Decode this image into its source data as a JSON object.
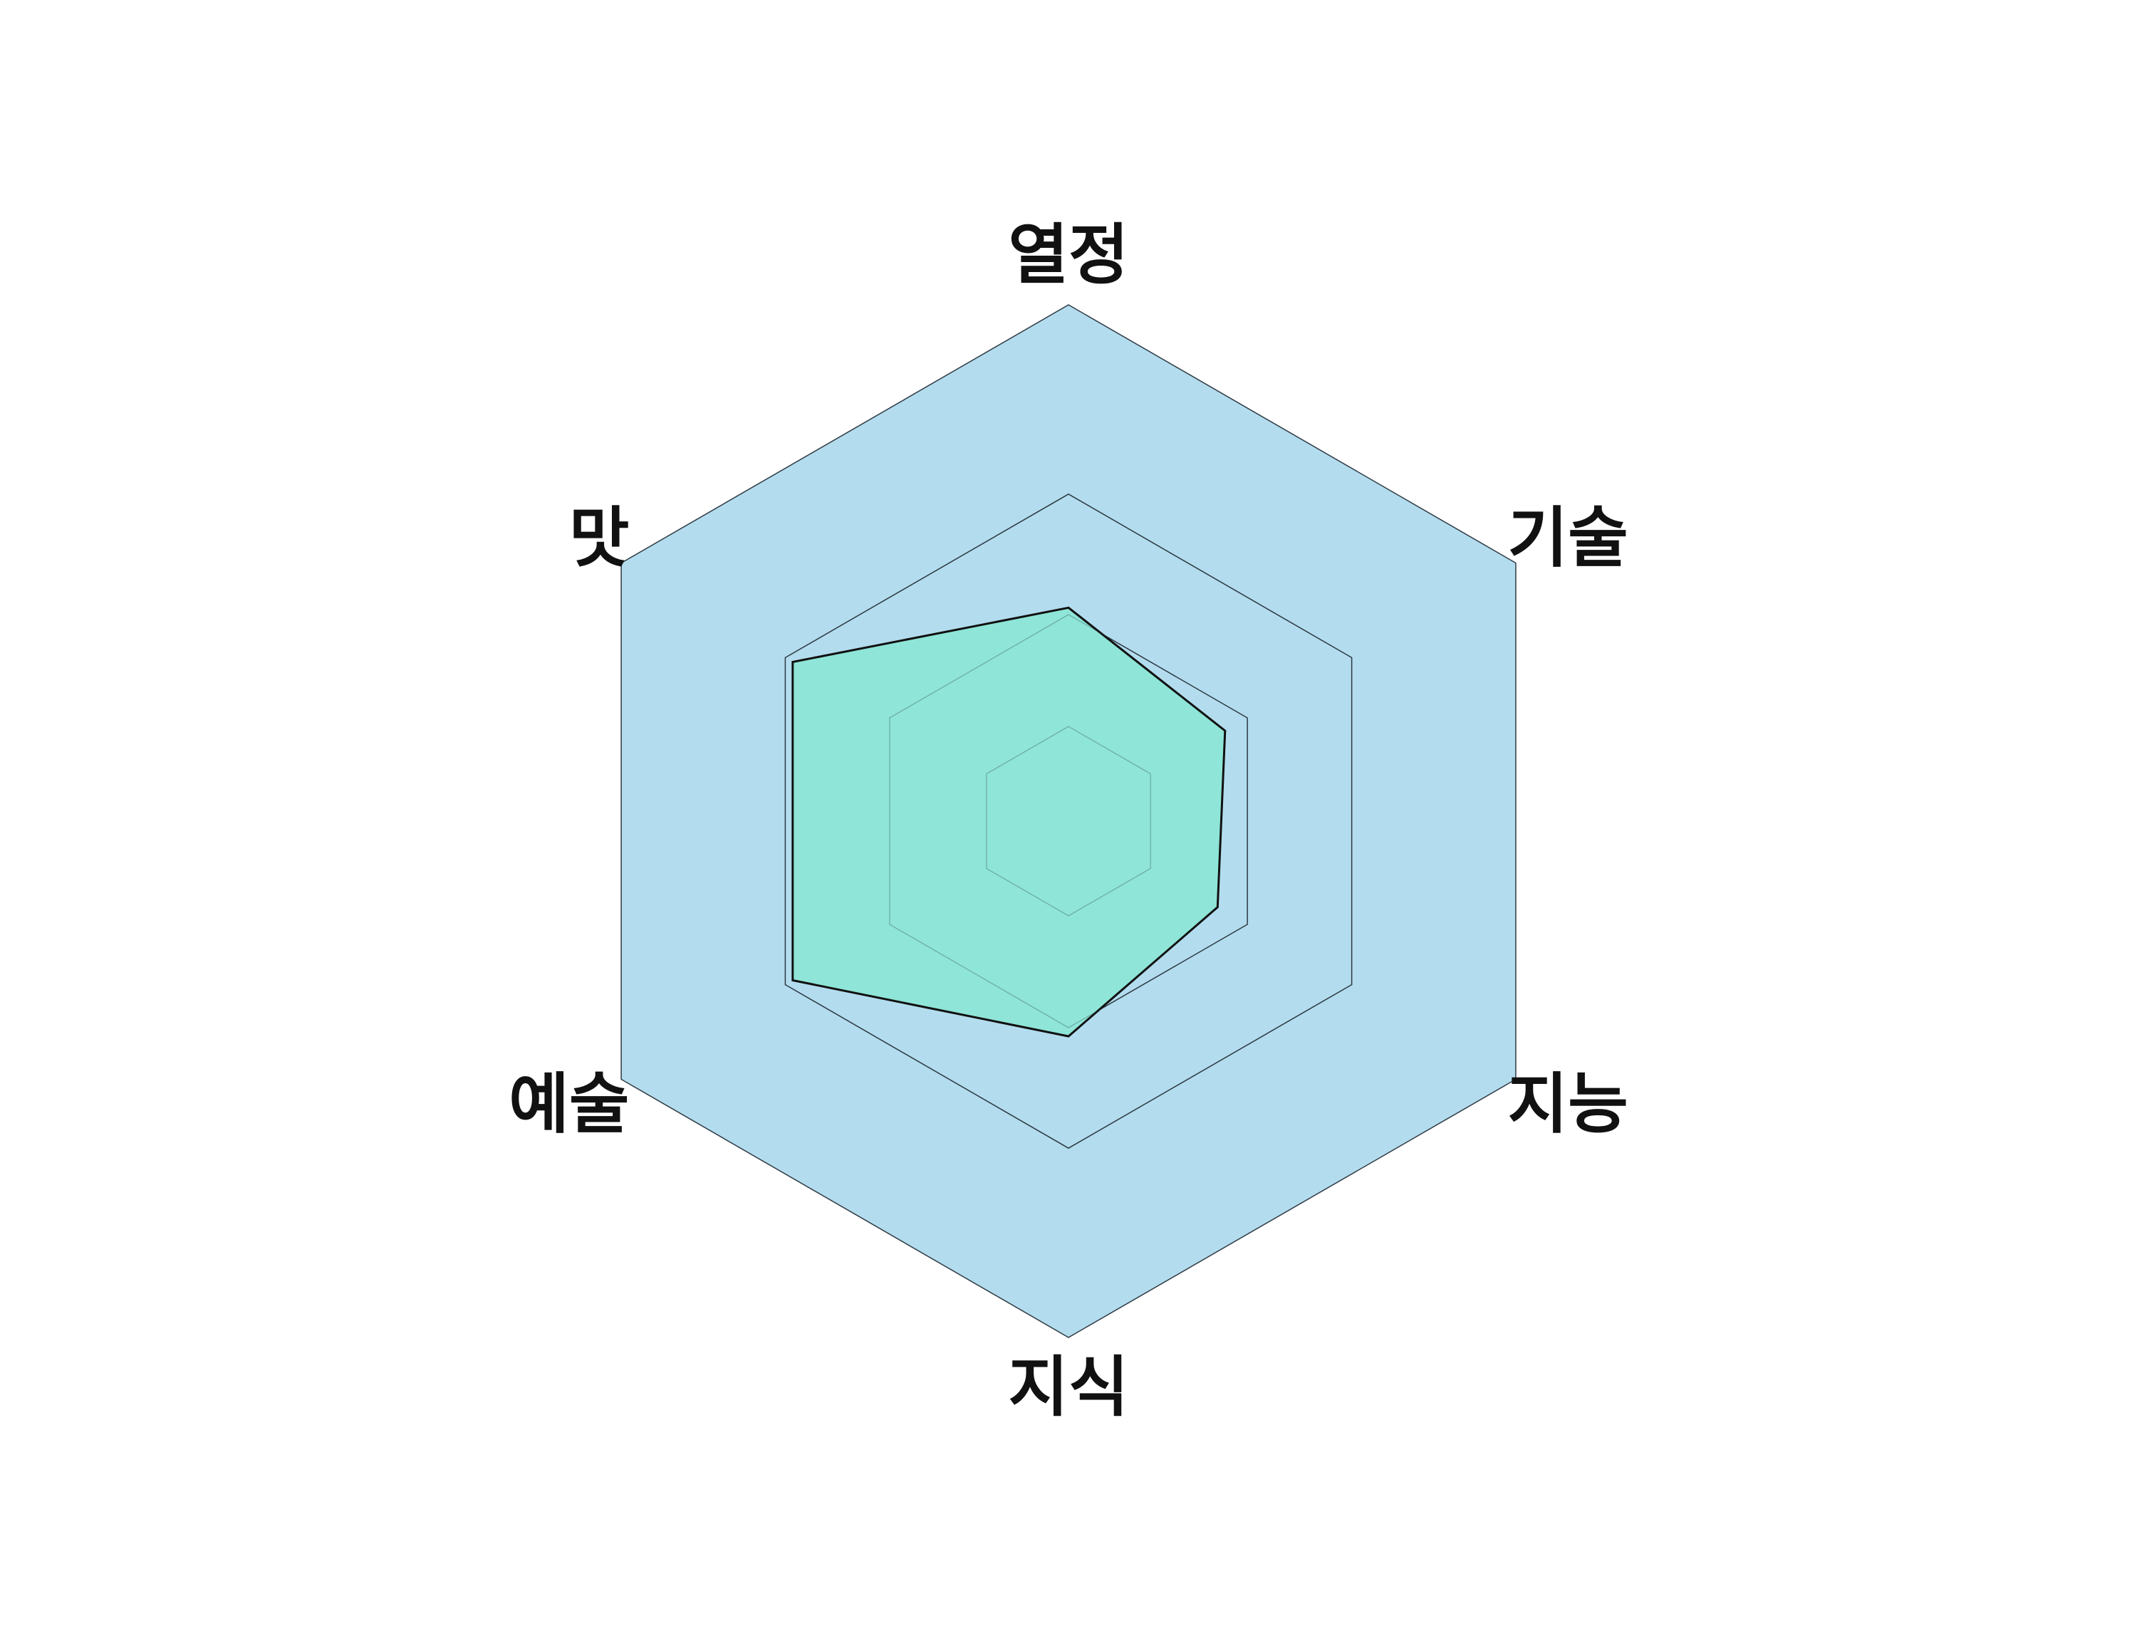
{
  "chart_data": {
    "type": "radar",
    "title": "",
    "axes": [
      "열정",
      "기술",
      "지능",
      "지식",
      "예술",
      "맛"
    ],
    "rmax": 3,
    "rings": [
      0.55,
      1.2,
      1.9,
      3.0
    ],
    "series": [
      {
        "values": [
          1.24,
          1.05,
          1.0,
          1.25,
          1.85,
          1.85
        ],
        "fill_color": "#8ee5d8",
        "line_color": "#111111"
      }
    ],
    "background_color": "#b3ddee",
    "ring_line_color": "#2f3a44"
  }
}
